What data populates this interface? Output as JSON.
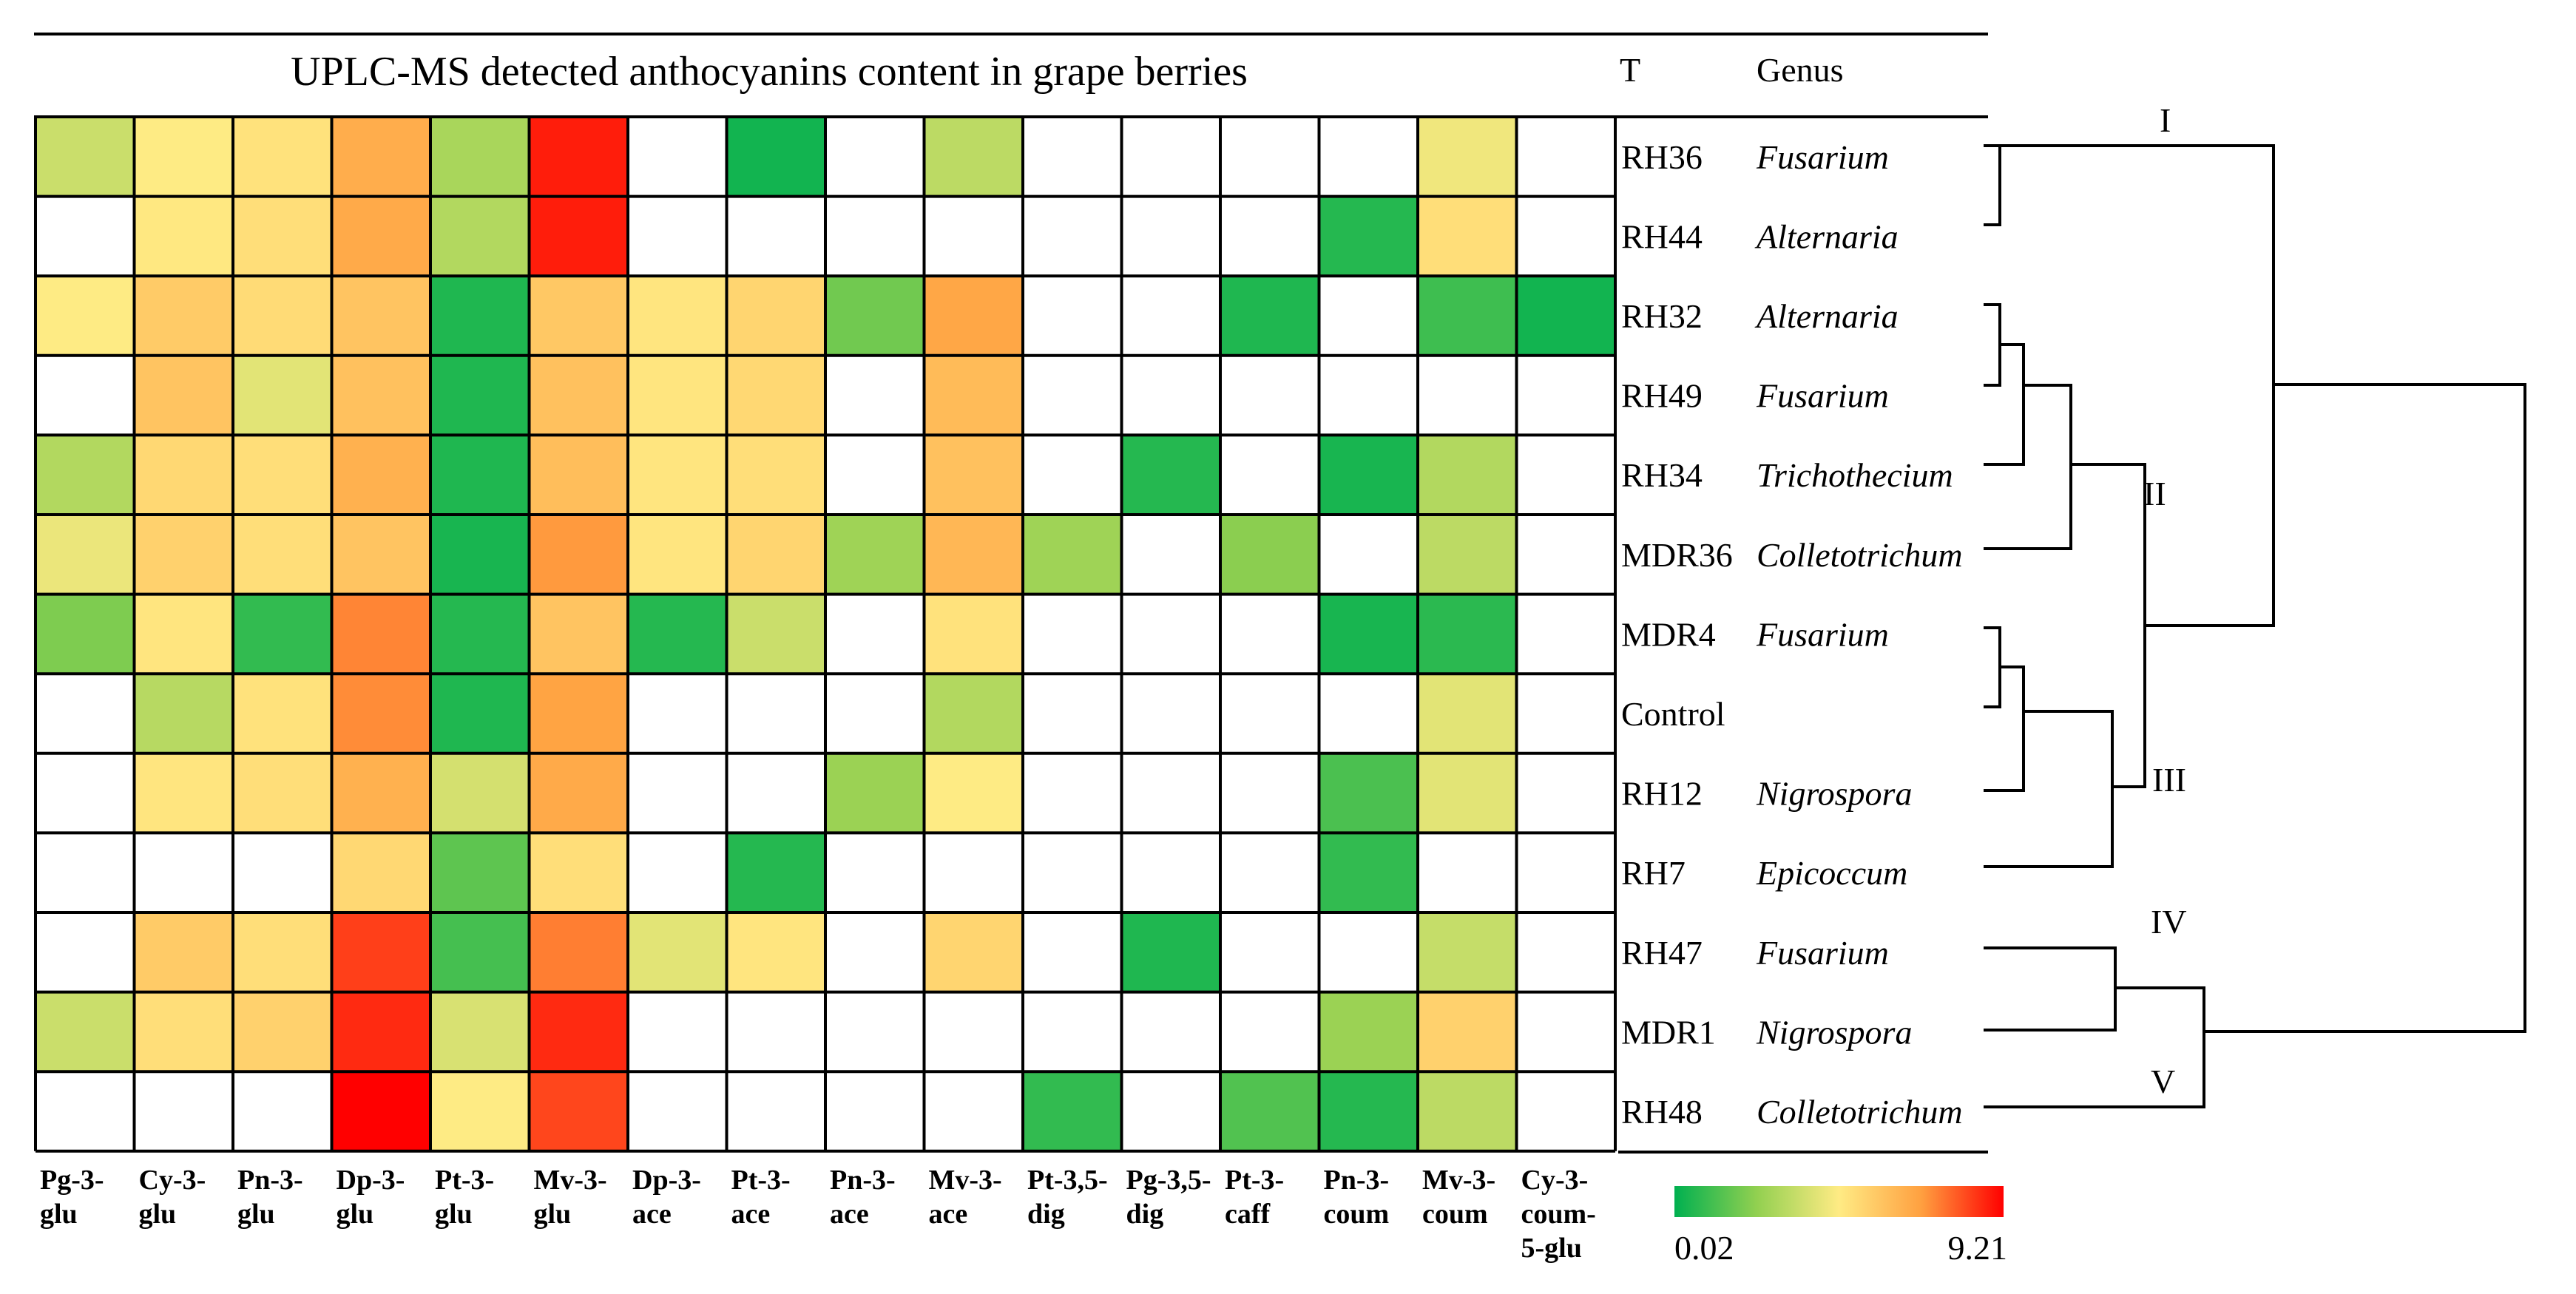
{
  "chart_data": {
    "type": "heatmap",
    "title": "UPLC-MS detected anthocyanins content in grape berries",
    "header_t": "T",
    "header_genus": "Genus",
    "columns": [
      [
        "Pg-3-",
        "glu"
      ],
      [
        "Cy-3-",
        "glu"
      ],
      [
        "Pn-3-",
        "glu"
      ],
      [
        "Dp-3-",
        "glu"
      ],
      [
        "Pt-3-",
        "glu"
      ],
      [
        "Mv-3-",
        "glu"
      ],
      [
        "Dp-3-",
        "ace"
      ],
      [
        "Pt-3-",
        "ace"
      ],
      [
        "Pn-3-",
        "ace"
      ],
      [
        "Mv-3-",
        "ace"
      ],
      [
        "Pt-3,5-",
        "dig"
      ],
      [
        "Pg-3,5-",
        "dig"
      ],
      [
        "Pt-3-",
        "caff"
      ],
      [
        "Pn-3-",
        "coum"
      ],
      [
        "Mv-3-",
        "coum"
      ],
      [
        "Cy-3-",
        "coum-",
        "5-glu"
      ]
    ],
    "rows": [
      {
        "t": "RH36",
        "genus": "Fusarium"
      },
      {
        "t": "RH44",
        "genus": "Alternaria"
      },
      {
        "t": "RH32",
        "genus": "Alternaria"
      },
      {
        "t": "RH49",
        "genus": "Fusarium"
      },
      {
        "t": "RH34",
        "genus": "Trichothecium"
      },
      {
        "t": "MDR36",
        "genus": "Colletotrichum"
      },
      {
        "t": "MDR4",
        "genus": "Fusarium"
      },
      {
        "t": "Control",
        "genus": ""
      },
      {
        "t": "RH12",
        "genus": "Nigrospora"
      },
      {
        "t": "RH7",
        "genus": "Epicoccum"
      },
      {
        "t": "RH47",
        "genus": "Fusarium"
      },
      {
        "t": "MDR1",
        "genus": "Nigrospora"
      },
      {
        "t": "RH48",
        "genus": "Colletotrichum"
      }
    ],
    "values": [
      [
        3.5,
        4.6,
        4.9,
        6.5,
        2.8,
        8.8,
        null,
        0.3,
        null,
        3.2,
        null,
        null,
        null,
        null,
        4.3,
        null
      ],
      [
        null,
        4.7,
        5.0,
        6.6,
        3.0,
        8.8,
        null,
        null,
        null,
        null,
        null,
        null,
        null,
        0.6,
        5.0,
        null
      ],
      [
        4.6,
        5.6,
        5.1,
        5.8,
        0.5,
        5.7,
        4.8,
        5.3,
        1.8,
        6.7,
        null,
        null,
        0.5,
        null,
        1.0,
        0.3
      ],
      [
        null,
        5.8,
        4.0,
        5.9,
        0.5,
        5.9,
        4.8,
        5.2,
        null,
        6.1,
        null,
        null,
        null,
        null,
        null,
        null
      ],
      [
        3.0,
        5.2,
        5.0,
        6.4,
        0.5,
        6.0,
        4.8,
        5.0,
        null,
        5.9,
        null,
        0.6,
        null,
        0.4,
        3.0,
        null
      ],
      [
        4.2,
        5.4,
        5.0,
        5.8,
        0.4,
        7.0,
        4.8,
        5.3,
        2.6,
        6.2,
        2.6,
        null,
        2.2,
        null,
        3.2,
        null
      ],
      [
        2.0,
        4.8,
        0.8,
        7.3,
        0.6,
        5.8,
        0.6,
        3.5,
        null,
        4.9,
        null,
        null,
        null,
        0.4,
        0.7,
        null
      ],
      [
        null,
        3.1,
        4.9,
        7.2,
        0.5,
        6.8,
        null,
        null,
        null,
        3.0,
        null,
        null,
        null,
        null,
        4.0,
        null
      ],
      [
        null,
        4.8,
        5.0,
        6.4,
        3.7,
        6.6,
        null,
        null,
        2.5,
        4.6,
        null,
        null,
        null,
        1.2,
        4.0,
        null
      ],
      [
        null,
        null,
        null,
        5.2,
        1.5,
        5.0,
        null,
        0.6,
        null,
        null,
        null,
        null,
        null,
        0.8,
        null,
        null
      ],
      [
        null,
        5.6,
        5.0,
        8.3,
        1.1,
        7.4,
        4.0,
        4.8,
        null,
        5.3,
        null,
        0.5,
        null,
        null,
        3.4,
        null
      ],
      [
        3.5,
        5.0,
        5.4,
        8.6,
        3.8,
        8.6,
        null,
        null,
        null,
        null,
        null,
        null,
        null,
        2.5,
        5.4,
        null
      ],
      [
        null,
        null,
        null,
        9.21,
        4.6,
        8.2,
        null,
        null,
        null,
        null,
        0.8,
        null,
        1.3,
        0.6,
        3.2,
        null
      ]
    ],
    "color_scale": {
      "min": 0.02,
      "max": 9.21,
      "min_label": "0.02",
      "max_label": "9.21",
      "stops": [
        "#00b050",
        "#92d050",
        "#ffeb84",
        "#ffa040",
        "#ff0000"
      ]
    },
    "empty_cell_color": "#ffffff",
    "dendrogram": {
      "clades": [
        "I",
        "II",
        "III",
        "IV",
        "V"
      ]
    }
  }
}
